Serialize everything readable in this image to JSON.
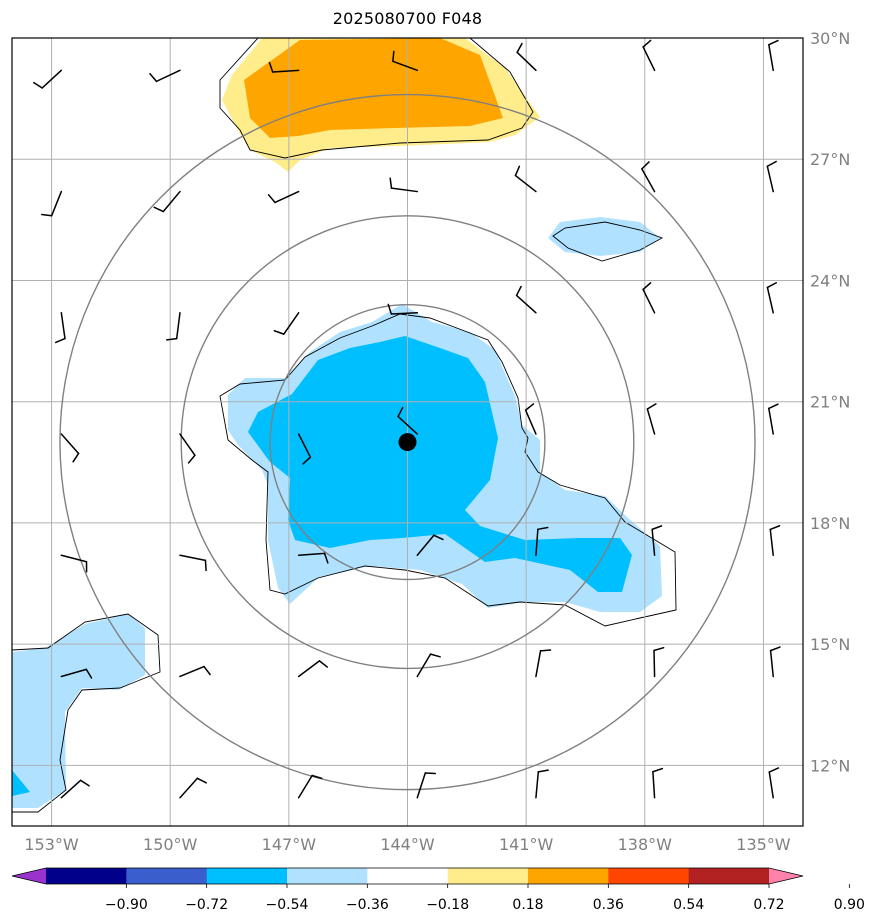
{
  "title": "2025080700 F048",
  "map_extent": {
    "lon_min": -154,
    "lon_max": -134,
    "lat_min": 10.5,
    "lat_max": 30
  },
  "lat_ticks": [
    {
      "value": 12,
      "label": "12°N"
    },
    {
      "value": 15,
      "label": "15°N"
    },
    {
      "value": 18,
      "label": "18°N"
    },
    {
      "value": 21,
      "label": "21°N"
    },
    {
      "value": 24,
      "label": "24°N"
    },
    {
      "value": 27,
      "label": "27°N"
    },
    {
      "value": 30,
      "label": "30°N"
    }
  ],
  "lon_ticks": [
    {
      "value": -153,
      "label": "153°W"
    },
    {
      "value": -150,
      "label": "150°W"
    },
    {
      "value": -147,
      "label": "147°W"
    },
    {
      "value": -144,
      "label": "144°W"
    },
    {
      "value": -141,
      "label": "141°W"
    },
    {
      "value": -138,
      "label": "138°W"
    },
    {
      "value": -135,
      "label": "135°W"
    }
  ],
  "storm_center": {
    "lon": -144,
    "lat": 20
  },
  "range_rings_deg": [
    3.4,
    5.6,
    8.6
  ],
  "colorbar": {
    "colors": [
      "#9a32cd",
      "#00008b",
      "#3a5fcd",
      "#00bfff",
      "#b0e2ff",
      "#ffffff",
      "#ffec8b",
      "#ffa500",
      "#ff4500",
      "#b22222",
      "#ff82ab"
    ],
    "labels": [
      "−0.90",
      "−0.72",
      "−0.54",
      "−0.36",
      "−0.18",
      "0.18",
      "0.36",
      "0.54",
      "0.72",
      "0.90"
    ]
  },
  "field_colors": {
    "neg_light": "#b0e2ff",
    "neg_mid": "#00bfff",
    "pos_light": "#ffec8b",
    "pos_mid": "#ffa500"
  }
}
